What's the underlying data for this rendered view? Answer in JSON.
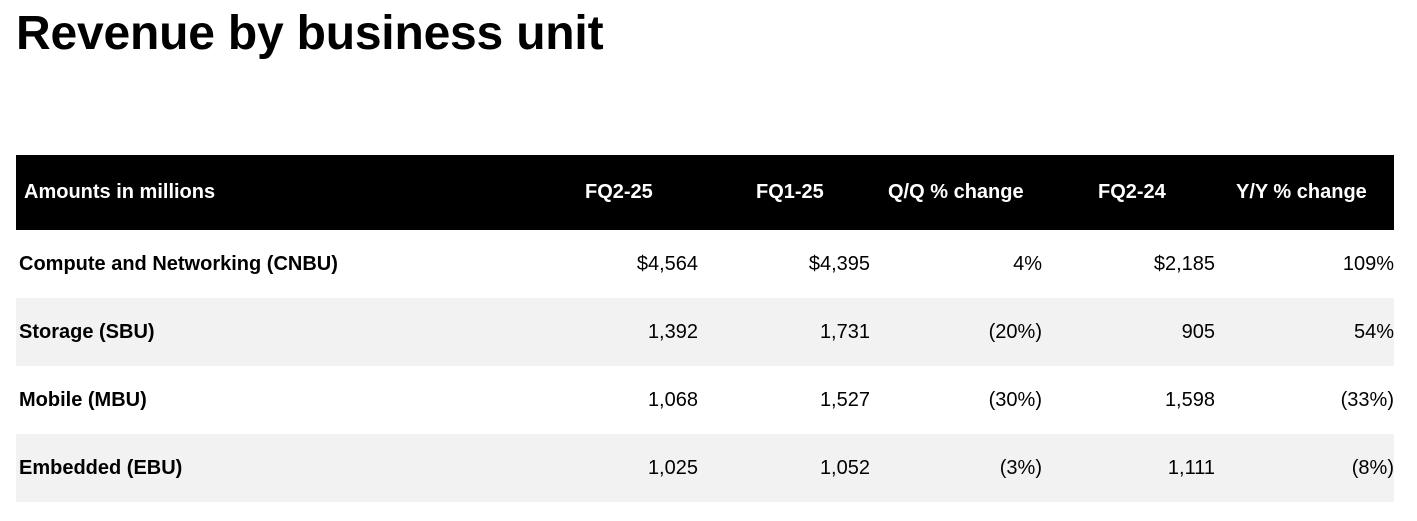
{
  "title": "Revenue by business unit",
  "table": {
    "headers": [
      "Amounts in millions",
      "FQ2-25",
      "FQ1-25",
      "Q/Q % change",
      "FQ2-24",
      "Y/Y % change"
    ],
    "rows": [
      [
        "Compute and Networking (CNBU)",
        "$4,564",
        "$4,395",
        "4%",
        "$2,185",
        "109%"
      ],
      [
        "Storage (SBU)",
        "1,392",
        "1,731",
        "(20%)",
        "905",
        "54%"
      ],
      [
        "Mobile (MBU)",
        "1,068",
        "1,527",
        "(30%)",
        "1,598",
        "(33%)"
      ],
      [
        "Embedded (EBU)",
        "1,025",
        "1,052",
        "(3%)",
        "1,111",
        "(8%)"
      ]
    ]
  },
  "colors": {
    "header_bg": "#000000",
    "header_text": "#ffffff",
    "stripe_bg": "#f2f2f2",
    "text": "#000000"
  }
}
